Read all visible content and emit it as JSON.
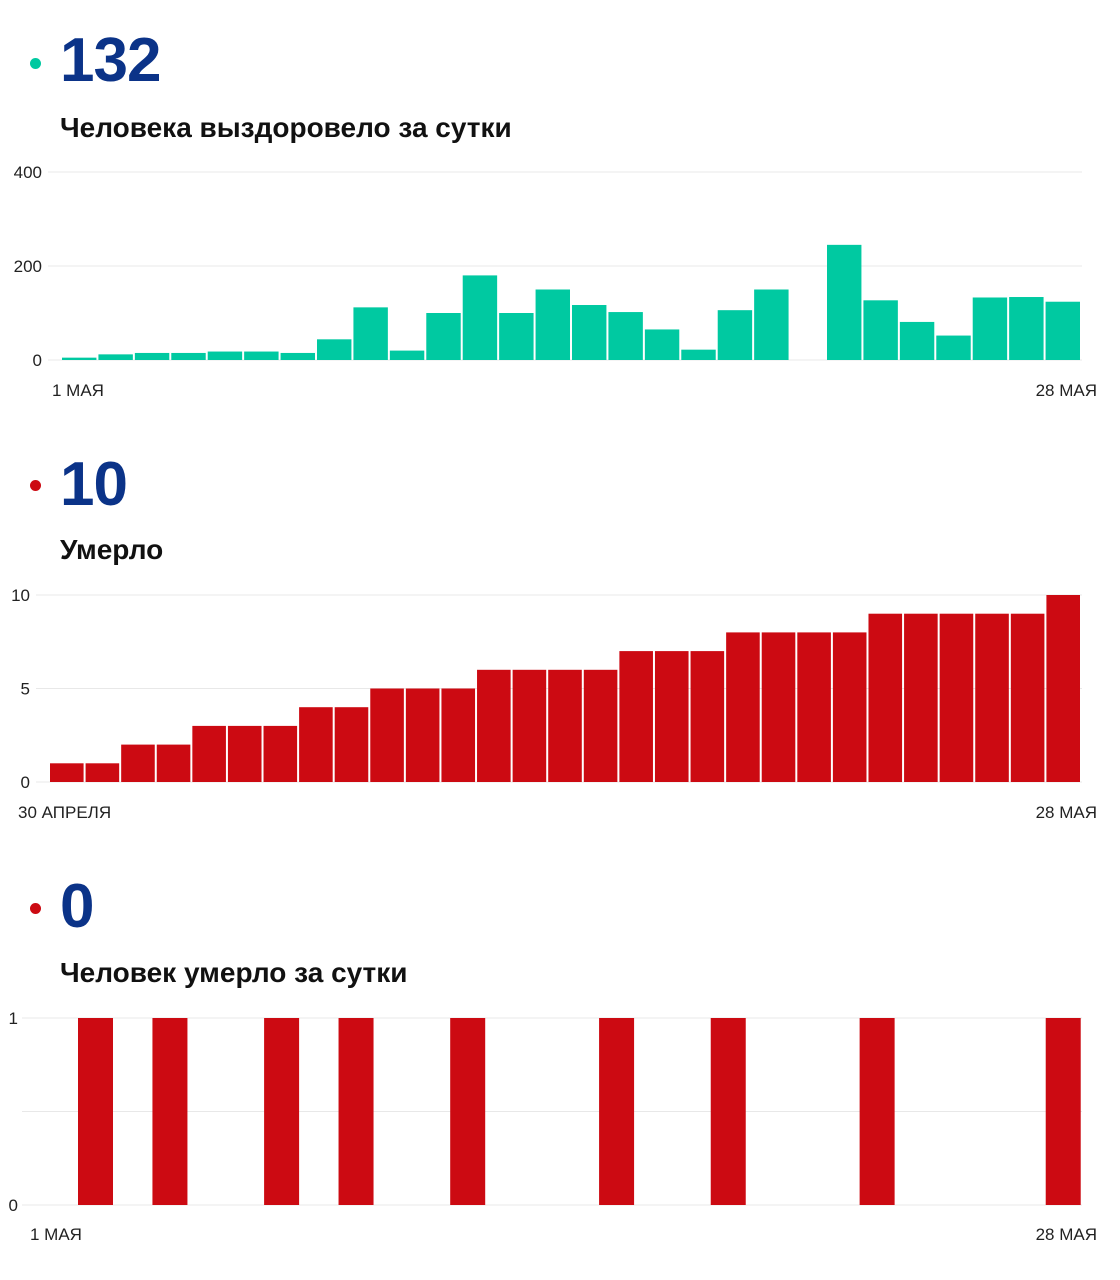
{
  "colors": {
    "number": "#0b3388",
    "teal": "#00c9a1",
    "red": "#cc0a12",
    "grid": "#e8e8e8"
  },
  "sections": [
    {
      "number": "132",
      "label": "Человека выздоровело за сутки",
      "dot_color": "#00c9a1"
    },
    {
      "number": "10",
      "label": "Умерло",
      "dot_color": "#cc0a12"
    },
    {
      "number": "0",
      "label": "Человек умерло за сутки",
      "dot_color": "#cc0a12"
    }
  ],
  "chart_data": [
    {
      "type": "bar",
      "color": "#00c9a1",
      "yticks": [
        "0",
        "200",
        "400"
      ],
      "ylim": [
        0,
        400
      ],
      "x_start_label": "1 МАЯ",
      "x_end_label": "28 МАЯ",
      "grid": true,
      "values": [
        5,
        12,
        15,
        15,
        18,
        18,
        15,
        44,
        112,
        20,
        100,
        180,
        100,
        150,
        117,
        102,
        65,
        22,
        106,
        150,
        0,
        245,
        127,
        81,
        52,
        133,
        134,
        124
      ]
    },
    {
      "type": "bar",
      "color": "#cc0a12",
      "yticks": [
        "0",
        "5",
        "10"
      ],
      "ylim": [
        0,
        10
      ],
      "x_start_label": "30 АПРЕЛЯ",
      "x_end_label": "28 МАЯ",
      "grid": true,
      "values": [
        1,
        1,
        2,
        2,
        3,
        3,
        3,
        4,
        4,
        5,
        5,
        5,
        6,
        6,
        6,
        6,
        7,
        7,
        7,
        8,
        8,
        8,
        8,
        9,
        9,
        9,
        9,
        9,
        10
      ]
    },
    {
      "type": "bar",
      "color": "#cc0a12",
      "yticks": [
        "0",
        "1"
      ],
      "ylim": [
        0,
        1
      ],
      "x_start_label": "1 МАЯ",
      "x_end_label": "28 МАЯ",
      "grid": true,
      "values": [
        0,
        1,
        0,
        1,
        0,
        0,
        1,
        0,
        1,
        0,
        0,
        1,
        0,
        0,
        0,
        1,
        0,
        0,
        1,
        0,
        0,
        0,
        1,
        0,
        0,
        0,
        0,
        1
      ]
    }
  ]
}
